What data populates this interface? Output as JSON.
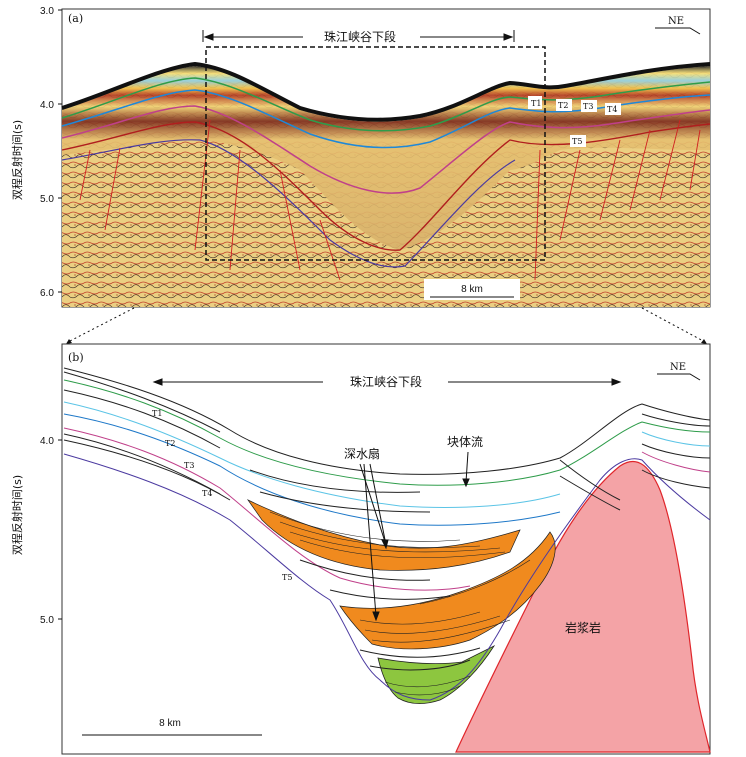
{
  "panel_a": {
    "label": "(a)",
    "title": "珠江峡谷下段",
    "orientation": "NE",
    "scale_bar": "8 km",
    "y_axis_label": "双程反射时间(s)",
    "y_ticks": [
      "3.0",
      "4.0",
      "5.0",
      "6.0"
    ],
    "horizons": [
      "T1",
      "T2",
      "T3",
      "T4",
      "T5"
    ]
  },
  "panel_b": {
    "label": "(b)",
    "title": "珠江峡谷下段",
    "orientation": "NE",
    "scale_bar": "8 km",
    "y_axis_label": "双程反射时间(s)",
    "y_ticks": [
      "4.0",
      "5.0"
    ],
    "horizons": [
      "T1",
      "T2",
      "T3",
      "T4",
      "T5"
    ],
    "annotations": {
      "fan": "深水扇",
      "mass_flow": "块体流",
      "igneous": "岩浆岩"
    }
  },
  "colors": {
    "deepwater_fan": "#f08a1e",
    "basal_fill": "#8dc63f",
    "igneous": "#f4a3a6",
    "igneous_edge": "#e0262b",
    "seismic_bg": "#e9cf7d"
  }
}
